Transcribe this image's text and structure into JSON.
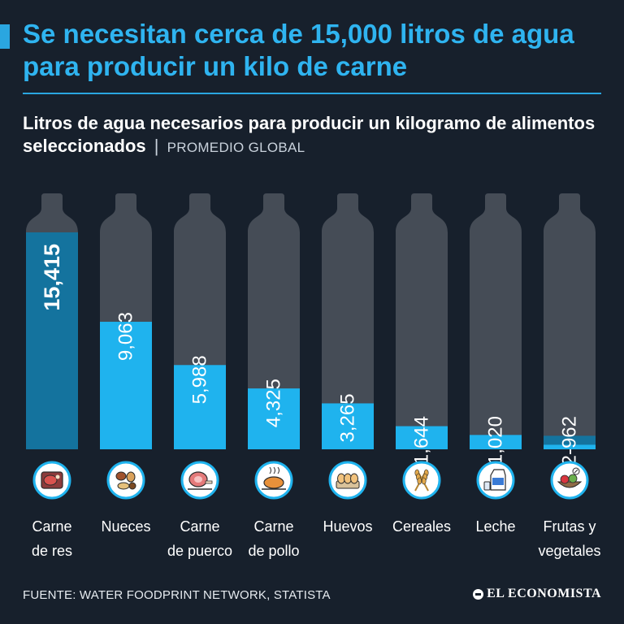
{
  "header": {
    "headline": "Se necesitan cerca de 15,000 litros de agua para producir un kilo de carne",
    "subtitle": "Litros de agua necesarios para producir un kilogramo de alimentos seleccionados",
    "separator": "|",
    "qualifier": "PROMEDIO GLOBAL"
  },
  "footer": {
    "source": "FUENTE: WATER FOODPRINT NETWORK, STATISTA",
    "brand": "EL ECONOMISTA"
  },
  "colors": {
    "background": "#17202c",
    "bottle": "#454c56",
    "fill": "#1fb3ee",
    "fill_highlight": "#14739e",
    "accent": "#2aa6e0"
  },
  "chart_data": {
    "type": "bar",
    "title": "Litros de agua necesarios para producir un kilogramo de alimentos seleccionados",
    "ylim": [
      0,
      15415
    ],
    "categories": [
      {
        "label_lines": [
          "Carne",
          "de res"
        ],
        "value": 15415,
        "value_label": "15,415",
        "icon": "beef-steak-icon",
        "highlight": true
      },
      {
        "label_lines": [
          "Nueces"
        ],
        "value": 9063,
        "value_label": "9,063",
        "icon": "nuts-icon",
        "highlight": false
      },
      {
        "label_lines": [
          "Carne",
          "de puerco"
        ],
        "value": 5988,
        "value_label": "5,988",
        "icon": "ham-icon",
        "highlight": false
      },
      {
        "label_lines": [
          "Carne",
          "de pollo"
        ],
        "value": 4325,
        "value_label": "4,325",
        "icon": "roast-chicken-icon",
        "highlight": false
      },
      {
        "label_lines": [
          "Huevos"
        ],
        "value": 3265,
        "value_label": "3,265",
        "icon": "eggs-icon",
        "highlight": false
      },
      {
        "label_lines": [
          "Cereales"
        ],
        "value": 1644,
        "value_label": "1,644",
        "icon": "wheat-icon",
        "highlight": false
      },
      {
        "label_lines": [
          "Leche"
        ],
        "value": 1020,
        "value_label": "1,020",
        "icon": "milk-carton-icon",
        "highlight": false
      },
      {
        "label_lines": [
          "Frutas y",
          "vegetales"
        ],
        "value": 962,
        "value_min": 322,
        "value_label": "322-962",
        "icon": "fruits-vegetables-icon",
        "highlight": false
      }
    ]
  }
}
